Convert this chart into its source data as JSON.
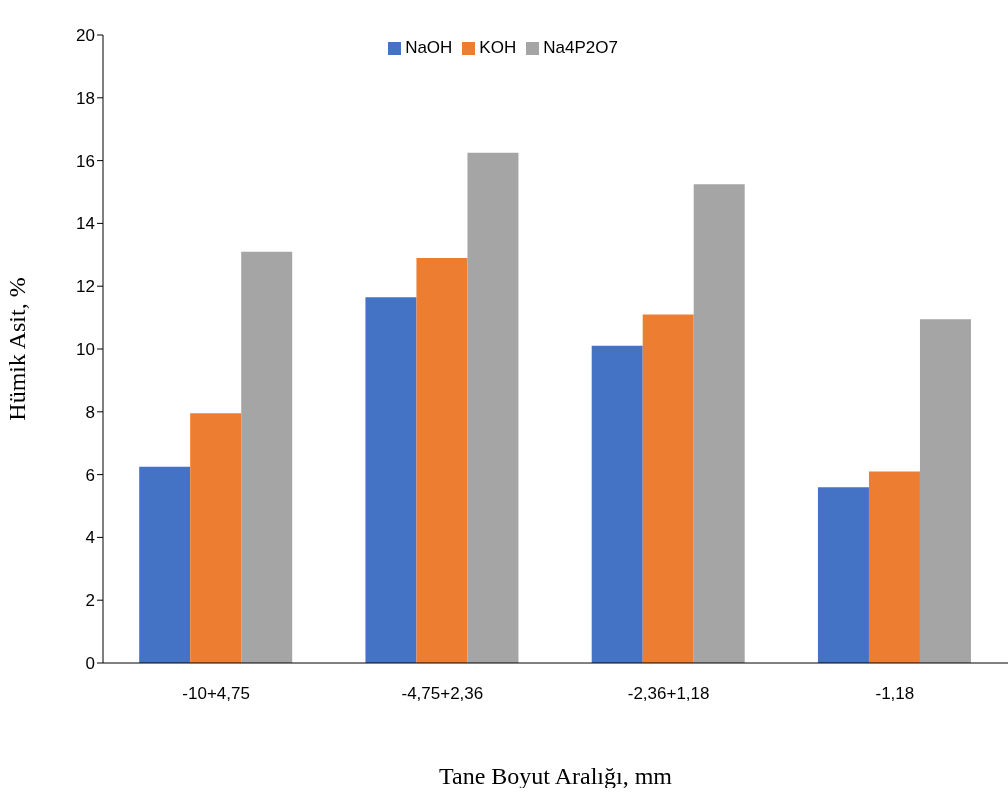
{
  "chart_data": {
    "type": "bar",
    "xlabel": "Tane Boyut Aralığı, mm",
    "ylabel": "Hümik Asit, %",
    "categories": [
      "-10+4,75",
      "-4,75+2,36",
      "-2,36+1,18",
      "-1,18"
    ],
    "series": [
      {
        "name": "NaOH",
        "color": "#4472c4",
        "values": [
          6.25,
          11.65,
          10.1,
          5.6
        ]
      },
      {
        "name": "KOH",
        "color": "#ed7d31",
        "values": [
          7.95,
          12.9,
          11.1,
          6.1
        ]
      },
      {
        "name": "Na4P2O7",
        "color": "#a5a5a5",
        "values": [
          13.1,
          16.25,
          15.25,
          10.95
        ]
      }
    ],
    "ylim": [
      0,
      20
    ],
    "yticks": [
      0,
      2,
      4,
      6,
      8,
      10,
      12,
      14,
      16,
      18,
      20
    ],
    "grid": false,
    "legend": "top"
  }
}
